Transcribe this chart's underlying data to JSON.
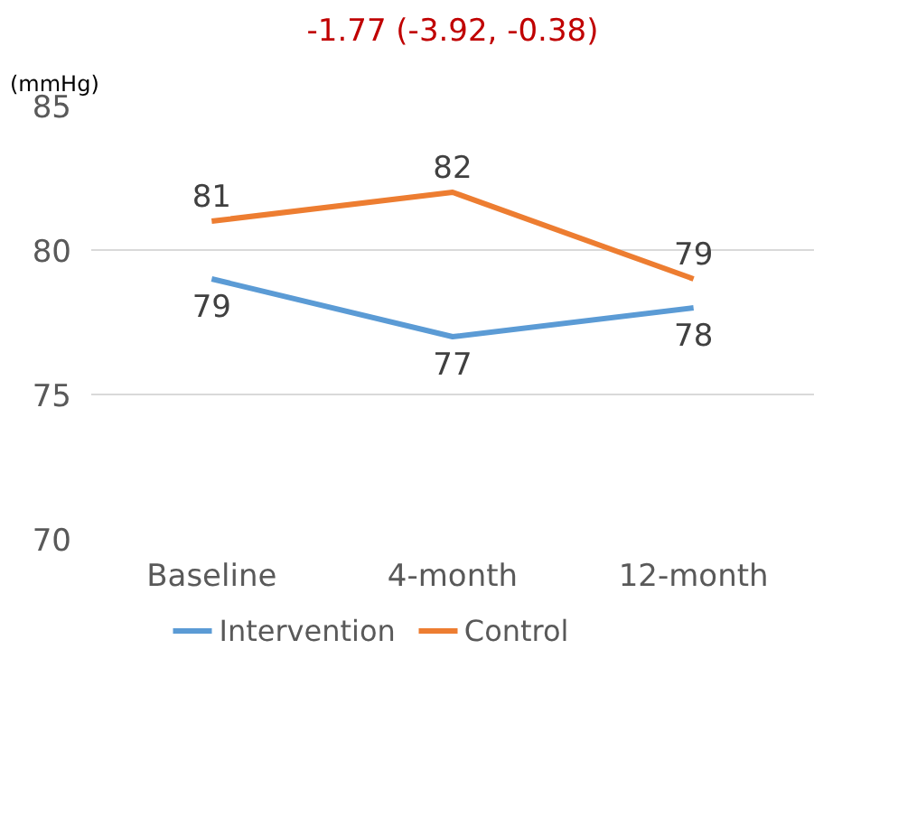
{
  "chart_data": {
    "type": "line",
    "title": "-1.77 (-3.92, -0.38)",
    "ylabel": "(mmHg)",
    "categories": [
      "Baseline",
      "4-month",
      "12-month"
    ],
    "series": [
      {
        "name": "Intervention",
        "color": "#5b9bd5",
        "values": [
          79,
          77,
          78
        ]
      },
      {
        "name": "Control",
        "color": "#ed7d31",
        "values": [
          81,
          82,
          79
        ]
      }
    ],
    "data_labels": true,
    "ylim": [
      70,
      85
    ],
    "yticks": [
      70,
      75,
      80,
      85
    ],
    "grid": "y",
    "legend": "bottom",
    "marker": "none",
    "line_style": "solid"
  }
}
